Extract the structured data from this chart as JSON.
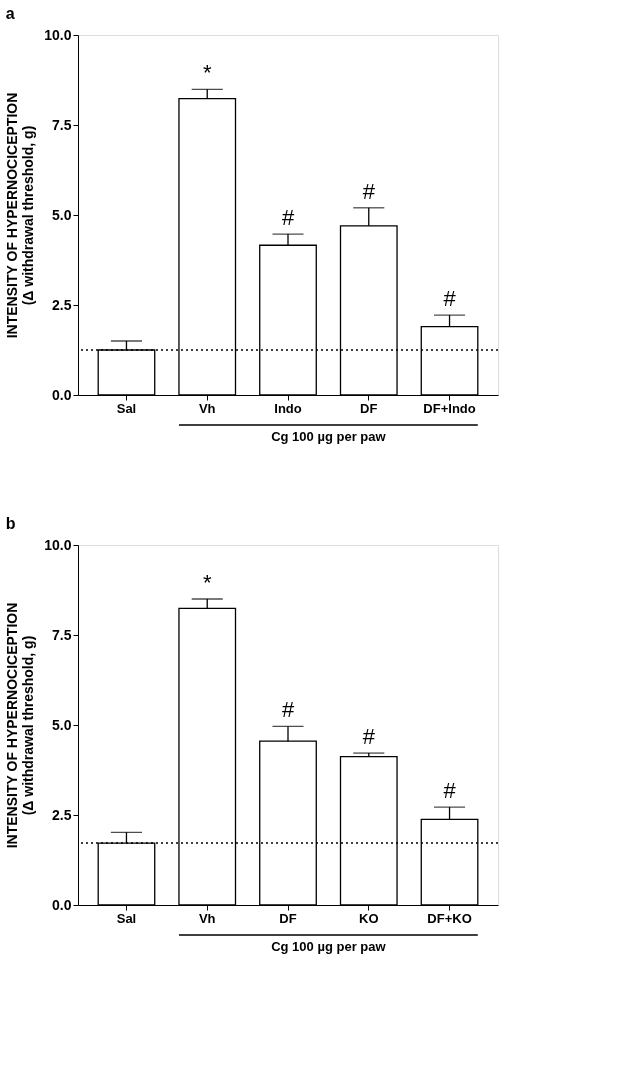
{
  "chart_data": [
    {
      "type": "bar",
      "title": "a",
      "ylabel": "INTENSITY OF HYPERNOCICEPTION\n(Δ withdrawal threshold, g)",
      "categories": [
        "Sal",
        "Vh",
        "Indo",
        "DF",
        "DF+Indo"
      ],
      "series": [
        {
          "color": "#ffffff",
          "values": [
            1.25,
            8.23,
            4.16,
            4.7,
            1.9
          ],
          "errors": [
            [
              1.25,
              1.5
            ],
            [
              8.23,
              8.49
            ],
            [
              4.16,
              4.47
            ],
            [
              4.7,
              5.2
            ],
            [
              1.9,
              2.22
            ]
          ]
        }
      ],
      "ylim": [
        0,
        10
      ],
      "yticks": [
        {
          "value": 0,
          "label": "0.0"
        },
        {
          "value": 2.5,
          "label": "2.5"
        },
        {
          "value": 5,
          "label": "5.0"
        },
        {
          "value": 7.5,
          "label": "7.5"
        },
        {
          "value": 10,
          "label": "10.0"
        }
      ],
      "ref_lines": [
        {
          "axis": "y",
          "value": 1.25,
          "line_style": "dotted",
          "color": "#000000"
        }
      ],
      "annotations": [
        {
          "text": "*",
          "x": "Vh",
          "y": 8.49
        },
        {
          "text": "#",
          "x": "Indo",
          "y": 4.47
        },
        {
          "text": "#",
          "x": "DF",
          "y": 5.2
        },
        {
          "text": "#",
          "x": "DF+Indo",
          "y": 2.22
        },
        "Cg 100 µg per paw"
      ],
      "grid": false
    },
    {
      "type": "bar",
      "title": "b",
      "ylabel": "INTENSITY OF HYPERNOCICEPTION\n(Δ withdrawal threshold, g)",
      "categories": [
        "Sal",
        "Vh",
        "DF",
        "KO",
        "DF+KO"
      ],
      "series": [
        {
          "color": "#ffffff",
          "values": [
            1.72,
            8.24,
            4.55,
            4.12,
            2.38
          ],
          "errors": [
            [
              1.72,
              2.02
            ],
            [
              8.24,
              8.5
            ],
            [
              4.55,
              4.96
            ],
            [
              4.12,
              4.22
            ],
            [
              2.38,
              2.72
            ]
          ]
        }
      ],
      "ylim": [
        0,
        10
      ],
      "yticks": [
        {
          "value": 0,
          "label": "0.0"
        },
        {
          "value": 2.5,
          "label": "2.5"
        },
        {
          "value": 5,
          "label": "5.0"
        },
        {
          "value": 7.5,
          "label": "7.5"
        },
        {
          "value": 10,
          "label": "10.0"
        }
      ],
      "ref_lines": [
        {
          "axis": "y",
          "value": 1.72,
          "line_style": "dotted",
          "color": "#000000"
        }
      ],
      "annotations": [
        {
          "text": "*",
          "x": "Vh",
          "y": 8.5
        },
        {
          "text": "#",
          "x": "DF",
          "y": 4.96
        },
        {
          "text": "#",
          "x": "KO",
          "y": 4.22
        },
        {
          "text": "#",
          "x": "DF+KO",
          "y": 2.72
        },
        "Cg 100 µg per paw"
      ],
      "grid": false
    }
  ]
}
